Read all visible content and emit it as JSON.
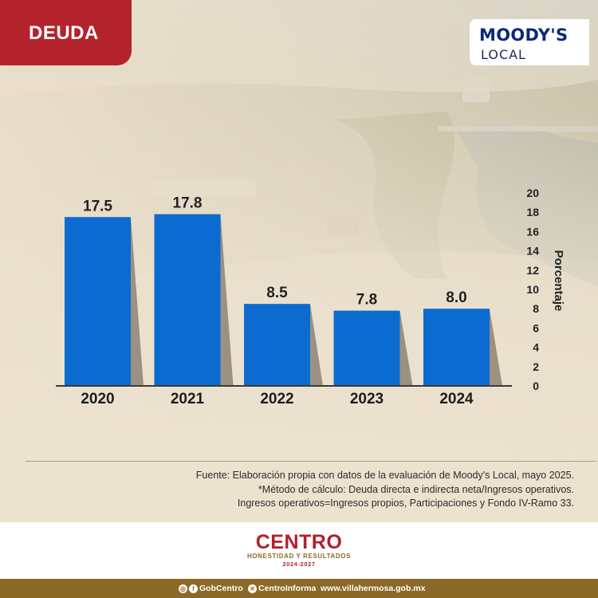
{
  "header": {
    "tag": "DEUDA"
  },
  "logo": {
    "brand": "MOODY'S",
    "sub": "LOCAL"
  },
  "chart_data": {
    "type": "bar",
    "categories": [
      "2020",
      "2021",
      "2022",
      "2023",
      "2024"
    ],
    "values": [
      17.5,
      17.8,
      8.5,
      7.8,
      8.0
    ],
    "value_labels": [
      "17.5",
      "17.8",
      "8.5",
      "7.8",
      "8.0"
    ],
    "ylabel": "Porcentaje",
    "ylim": [
      0,
      20
    ],
    "yticks": [
      "0",
      "2",
      "4",
      "6",
      "8",
      "10",
      "12",
      "14",
      "16",
      "18",
      "20"
    ],
    "y_axis_side": "right",
    "grid": false,
    "bar_color": "#0b6bd1"
  },
  "notes": [
    "Fuente: Elaboración propia con datos de la evaluación de Moody's Local, mayo 2025.",
    "*Método de cálculo: Deuda directa e indirecta neta/Ingresos operativos.",
    "Ingresos operativos=Ingresos propios, Participaciones y Fondo IV-Ramo 33."
  ],
  "footer": {
    "brand": "CENTRO",
    "tagline": "HONESTIDAD Y RESULTADOS",
    "period": "2024-2027"
  },
  "social": {
    "handle1": "GobCentro",
    "handle2": "CentroInforma",
    "website": "www.villahermosa.gob.mx"
  },
  "colors": {
    "accent_red": "#b3232b",
    "bar_blue": "#0b6bd1",
    "gold": "#8b6a28",
    "moodys_navy": "#0a2875"
  }
}
